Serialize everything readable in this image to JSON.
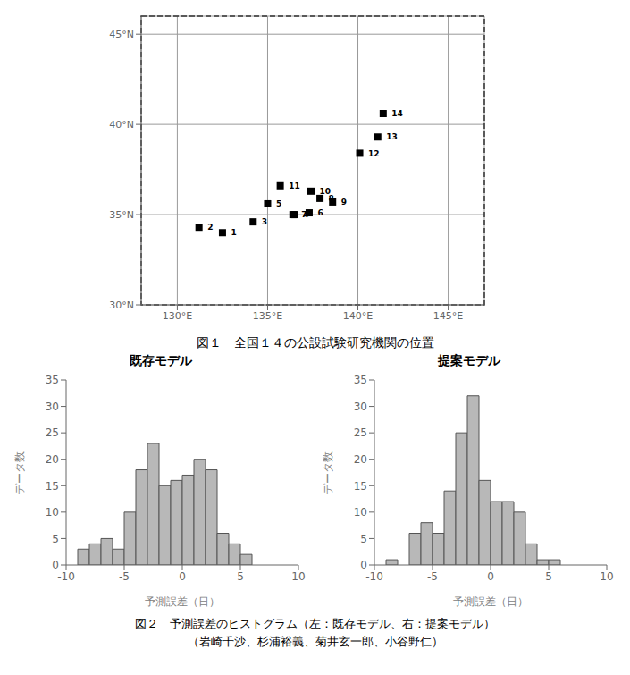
{
  "chart_data": [
    {
      "type": "scatter",
      "x": [
        132.5,
        131.2,
        134.2,
        136.5,
        135.0,
        137.3,
        136.4,
        137.9,
        138.6,
        137.4,
        135.7,
        140.1,
        141.1,
        141.4
      ],
      "values": [
        34.0,
        34.3,
        34.6,
        35.0,
        35.6,
        35.1,
        35.0,
        35.9,
        35.7,
        36.3,
        36.6,
        38.4,
        39.3,
        40.6
      ],
      "labels": [
        "1",
        "2",
        "3",
        "4",
        "5",
        "6",
        "7",
        "8",
        "9",
        "10",
        "11",
        "12",
        "13",
        "14"
      ],
      "color": "#000000",
      "marker": "square",
      "xlim": [
        128,
        147
      ],
      "ylim": [
        30,
        46
      ],
      "xticks": [
        {
          "value": 130,
          "label": "130°E"
        },
        {
          "value": 135,
          "label": "135°E"
        },
        {
          "value": 140,
          "label": "140°E"
        },
        {
          "value": 145,
          "label": "145°E"
        }
      ],
      "yticks": [
        {
          "value": 30,
          "label": "30°N"
        },
        {
          "value": 35,
          "label": "35°N"
        },
        {
          "value": 40,
          "label": "40°N"
        },
        {
          "value": 45,
          "label": "45°N"
        }
      ],
      "grid": true,
      "caption": "図１　全国１４の公設試験研究機関の位置"
    },
    {
      "type": "histogram",
      "title": "既存モデル",
      "x_label": "予測誤差（日）",
      "y_label": "データ数",
      "bins": [
        -9,
        -8,
        -7,
        -6,
        -5,
        -4,
        -3,
        -2,
        -1,
        0,
        1,
        2,
        3,
        4,
        5,
        6
      ],
      "values": [
        3,
        4,
        5,
        3,
        10,
        18,
        23,
        15,
        16,
        17,
        20,
        18,
        6,
        4,
        2
      ],
      "color": "#b8b8b8",
      "xlim": [
        -10,
        10
      ],
      "ylim": [
        0,
        35
      ],
      "xticks": [
        -10,
        -5,
        0,
        5,
        10
      ],
      "yticks": [
        0,
        5,
        10,
        15,
        20,
        25,
        30,
        35
      ],
      "grid": false
    },
    {
      "type": "histogram",
      "title": "提案モデル",
      "x_label": "予測誤差（日）",
      "y_label": "データ数",
      "bins": [
        -9,
        -8,
        -7,
        -6,
        -5,
        -4,
        -3,
        -2,
        -1,
        0,
        1,
        2,
        3,
        4,
        5,
        6,
        7
      ],
      "values": [
        1,
        0,
        6,
        8,
        6,
        14,
        25,
        32,
        16,
        12,
        12,
        10,
        4,
        1,
        1,
        0
      ],
      "color": "#b8b8b8",
      "xlim": [
        -10,
        10
      ],
      "ylim": [
        0,
        35
      ],
      "xticks": [
        -10,
        -5,
        0,
        5,
        10
      ],
      "yticks": [
        0,
        5,
        10,
        15,
        20,
        25,
        30,
        35
      ],
      "grid": false
    }
  ],
  "captions": [
    "図２　予測誤差のヒストグラム（左：既存モデル、右：提案モデル）",
    "（岩崎千沙、杉浦裕義、菊井玄一郎、小谷野仁）"
  ]
}
